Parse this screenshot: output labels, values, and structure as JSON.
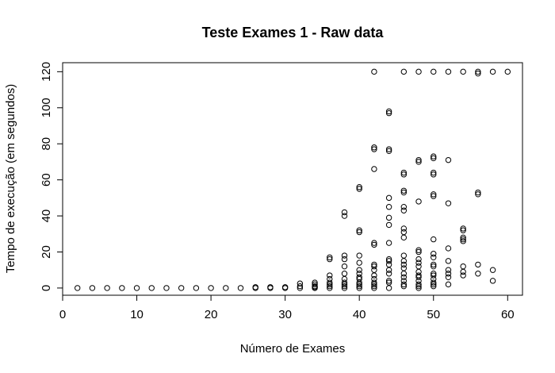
{
  "chart_data": {
    "type": "scatter",
    "title": "Teste Exames 1 - Raw data",
    "xlabel": "Número de Exames",
    "ylabel": "Tempo de execução (em segundos)",
    "xlim": [
      0,
      62
    ],
    "ylim": [
      -4,
      125
    ],
    "xticks": [
      0,
      10,
      20,
      30,
      40,
      50,
      60
    ],
    "yticks": [
      0,
      20,
      40,
      60,
      80,
      100,
      120
    ],
    "grid": false,
    "marker": "open-circle",
    "color": "#000000",
    "points": [
      [
        2,
        0
      ],
      [
        4,
        0
      ],
      [
        6,
        0
      ],
      [
        8,
        0
      ],
      [
        10,
        0
      ],
      [
        12,
        0
      ],
      [
        14,
        0
      ],
      [
        16,
        0
      ],
      [
        18,
        0
      ],
      [
        20,
        0
      ],
      [
        22,
        0
      ],
      [
        24,
        0
      ],
      [
        26,
        0
      ],
      [
        26,
        0.5
      ],
      [
        28,
        0
      ],
      [
        28,
        0.5
      ],
      [
        30,
        0
      ],
      [
        30,
        0.5
      ],
      [
        32,
        0
      ],
      [
        32,
        1
      ],
      [
        32,
        2.5
      ],
      [
        34,
        0
      ],
      [
        34,
        0.5
      ],
      [
        34,
        1
      ],
      [
        34,
        2
      ],
      [
        34,
        3
      ],
      [
        36,
        0
      ],
      [
        36,
        1
      ],
      [
        36,
        2
      ],
      [
        36,
        3
      ],
      [
        36,
        5
      ],
      [
        36,
        7
      ],
      [
        36,
        16
      ],
      [
        36,
        17
      ],
      [
        38,
        0
      ],
      [
        38,
        1
      ],
      [
        38,
        2
      ],
      [
        38,
        3
      ],
      [
        38,
        5
      ],
      [
        38,
        8
      ],
      [
        38,
        12
      ],
      [
        38,
        16
      ],
      [
        38,
        18
      ],
      [
        38,
        40
      ],
      [
        38,
        42
      ],
      [
        40,
        0
      ],
      [
        40,
        1
      ],
      [
        40,
        2
      ],
      [
        40,
        3
      ],
      [
        40,
        5
      ],
      [
        40,
        6
      ],
      [
        40,
        8
      ],
      [
        40,
        10
      ],
      [
        40,
        14
      ],
      [
        40,
        18
      ],
      [
        40,
        31
      ],
      [
        40,
        32
      ],
      [
        40,
        55
      ],
      [
        40,
        56
      ],
      [
        42,
        0
      ],
      [
        42,
        1
      ],
      [
        42,
        2
      ],
      [
        42,
        3
      ],
      [
        42,
        5
      ],
      [
        42,
        7
      ],
      [
        42,
        10
      ],
      [
        42,
        12
      ],
      [
        42,
        13
      ],
      [
        42,
        24
      ],
      [
        42,
        25
      ],
      [
        42,
        66
      ],
      [
        42,
        77
      ],
      [
        42,
        78
      ],
      [
        42,
        120
      ],
      [
        44,
        0
      ],
      [
        44,
        3
      ],
      [
        44,
        4
      ],
      [
        44,
        8
      ],
      [
        44,
        10
      ],
      [
        44,
        13
      ],
      [
        44,
        15
      ],
      [
        44,
        16
      ],
      [
        44,
        25
      ],
      [
        44,
        35
      ],
      [
        44,
        39
      ],
      [
        44,
        45
      ],
      [
        44,
        50
      ],
      [
        44,
        76
      ],
      [
        44,
        77
      ],
      [
        44,
        97
      ],
      [
        44,
        98
      ],
      [
        46,
        1
      ],
      [
        46,
        2
      ],
      [
        46,
        4
      ],
      [
        46,
        6
      ],
      [
        46,
        8
      ],
      [
        46,
        11
      ],
      [
        46,
        13
      ],
      [
        46,
        15
      ],
      [
        46,
        18
      ],
      [
        46,
        28
      ],
      [
        46,
        31
      ],
      [
        46,
        33
      ],
      [
        46,
        43
      ],
      [
        46,
        45
      ],
      [
        46,
        53
      ],
      [
        46,
        54
      ],
      [
        46,
        63
      ],
      [
        46,
        64
      ],
      [
        46,
        120
      ],
      [
        48,
        0
      ],
      [
        48,
        1
      ],
      [
        48,
        2
      ],
      [
        48,
        4
      ],
      [
        48,
        6
      ],
      [
        48,
        7
      ],
      [
        48,
        9
      ],
      [
        48,
        12
      ],
      [
        48,
        14
      ],
      [
        48,
        16
      ],
      [
        48,
        20
      ],
      [
        48,
        21
      ],
      [
        48,
        48
      ],
      [
        48,
        70
      ],
      [
        48,
        71
      ],
      [
        48,
        120
      ],
      [
        50,
        1
      ],
      [
        50,
        2
      ],
      [
        50,
        3
      ],
      [
        50,
        5
      ],
      [
        50,
        7
      ],
      [
        50,
        8
      ],
      [
        50,
        12
      ],
      [
        50,
        13
      ],
      [
        50,
        17
      ],
      [
        50,
        19
      ],
      [
        50,
        27
      ],
      [
        50,
        51
      ],
      [
        50,
        52
      ],
      [
        50,
        63
      ],
      [
        50,
        64
      ],
      [
        50,
        72
      ],
      [
        50,
        73
      ],
      [
        50,
        120
      ],
      [
        52,
        2
      ],
      [
        52,
        6
      ],
      [
        52,
        8
      ],
      [
        52,
        10
      ],
      [
        52,
        15
      ],
      [
        52,
        22
      ],
      [
        52,
        47
      ],
      [
        52,
        71
      ],
      [
        52,
        120
      ],
      [
        54,
        7
      ],
      [
        54,
        9
      ],
      [
        54,
        12
      ],
      [
        54,
        26
      ],
      [
        54,
        27
      ],
      [
        54,
        28
      ],
      [
        54,
        32
      ],
      [
        54,
        33
      ],
      [
        54,
        120
      ],
      [
        56,
        8
      ],
      [
        56,
        13
      ],
      [
        56,
        52
      ],
      [
        56,
        53
      ],
      [
        56,
        119
      ],
      [
        56,
        120
      ],
      [
        58,
        4
      ],
      [
        58,
        10
      ],
      [
        58,
        120
      ],
      [
        60,
        120
      ]
    ]
  }
}
